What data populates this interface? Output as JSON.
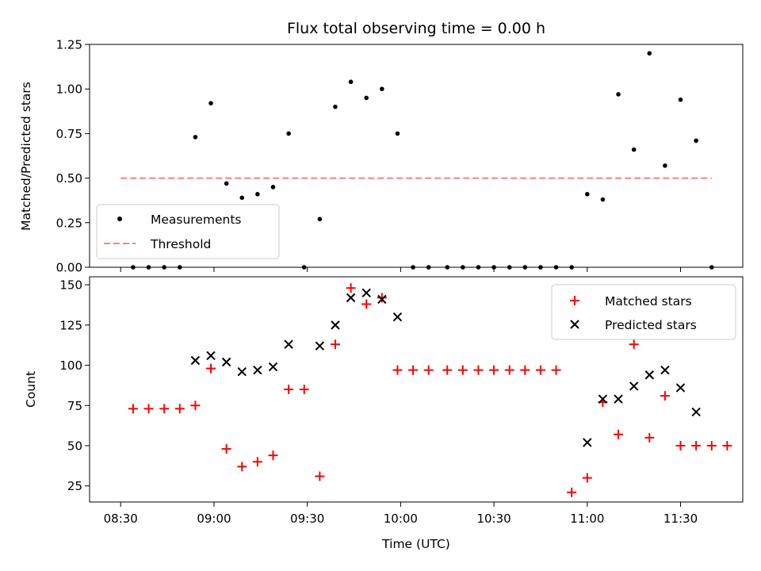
{
  "chart_data": {
    "type": "scatter",
    "title": "Flux total observing time = 0.00 h",
    "xlabel": "Time (UTC)",
    "x_unit": "minutes after 08:00 UTC",
    "x_ticks": [
      {
        "value": 30,
        "label": "08:30"
      },
      {
        "value": 60,
        "label": "09:00"
      },
      {
        "value": 90,
        "label": "09:30"
      },
      {
        "value": 120,
        "label": "10:00"
      },
      {
        "value": 150,
        "label": "10:30"
      },
      {
        "value": 180,
        "label": "11:00"
      },
      {
        "value": 210,
        "label": "11:30"
      }
    ],
    "xlim": [
      20,
      230
    ],
    "panels": [
      {
        "ylabel": "Matched/Predicted stars",
        "ylim": [
          0,
          1.25
        ],
        "yticks": [
          "0.00",
          "0.25",
          "0.50",
          "0.75",
          "1.00",
          "1.25"
        ],
        "legend_position": "lower-left",
        "series": [
          {
            "name": "Measurements",
            "style": "dot",
            "color": "#000000",
            "x": [
              34,
              39,
              44,
              49,
              54,
              59,
              64,
              69,
              74,
              79,
              84,
              89,
              94,
              99,
              104,
              109,
              114,
              119,
              124,
              129,
              135,
              140,
              145,
              150,
              155,
              160,
              165,
              170,
              175,
              180,
              185,
              190,
              195,
              200,
              205,
              210,
              215,
              220
            ],
            "y": [
              0,
              0,
              0,
              0,
              0.73,
              0.92,
              0.47,
              0.39,
              0.41,
              0.45,
              0.75,
              0,
              0.27,
              0.9,
              1.04,
              0.95,
              1.0,
              0.75,
              0,
              0,
              0,
              0,
              0,
              0,
              0,
              0,
              0,
              0,
              0,
              0.41,
              0.38,
              0.97,
              0.66,
              1.2,
              0.57,
              0.94,
              0.71,
              0
            ]
          },
          {
            "name": "Threshold",
            "style": "dashed-line",
            "color": "#ff7f7f",
            "x": [
              30,
              220
            ],
            "y": [
              0.5,
              0.5
            ]
          }
        ]
      },
      {
        "ylabel": "Count",
        "ylim": [
          15,
          155
        ],
        "yticks": [
          "25",
          "50",
          "75",
          "100",
          "125",
          "150"
        ],
        "legend_position": "upper-right",
        "series": [
          {
            "name": "Matched stars",
            "style": "plus",
            "color": "#ff0000",
            "x": [
              34,
              39,
              44,
              49,
              54,
              59,
              64,
              69,
              74,
              79,
              84,
              89,
              94,
              99,
              104,
              109,
              114,
              119,
              124,
              129,
              135,
              140,
              145,
              150,
              155,
              160,
              165,
              170,
              175,
              180,
              185,
              190,
              195,
              200,
              205,
              210,
              215,
              220,
              225
            ],
            "y": [
              73,
              73,
              73,
              73,
              75,
              98,
              48,
              37,
              40,
              44,
              85,
              85,
              31,
              113,
              148,
              138,
              142,
              97,
              97,
              97,
              97,
              97,
              97,
              97,
              97,
              97,
              97,
              97,
              21,
              30,
              77,
              57,
              113,
              55,
              81,
              50,
              50,
              50,
              50
            ]
          },
          {
            "name": "Predicted stars",
            "style": "x",
            "color": "#000000",
            "x": [
              54,
              59,
              64,
              69,
              74,
              79,
              84,
              94,
              99,
              104,
              109,
              114,
              119,
              180,
              185,
              190,
              195,
              200,
              205,
              210,
              215
            ],
            "y": [
              103,
              106,
              102,
              96,
              97,
              99,
              113,
              112,
              125,
              142,
              145,
              141,
              130,
              52,
              79,
              79,
              87,
              94,
              97,
              86,
              71
            ]
          }
        ]
      }
    ]
  }
}
